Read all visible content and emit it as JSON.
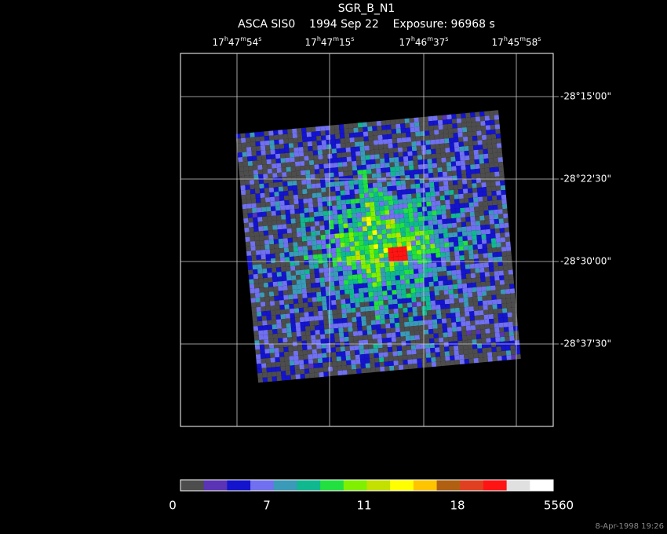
{
  "header": {
    "title": "SGR_B_N1",
    "subtitle": "ASCA SIS0    1994 Sep 22    Exposure: 96968 s"
  },
  "ra_labels": [
    [
      "17",
      "h",
      "47",
      "m",
      "54",
      "s"
    ],
    [
      "17",
      "h",
      "47",
      "m",
      "15",
      "s"
    ],
    [
      "17",
      "h",
      "46",
      "m",
      "37",
      "s"
    ],
    [
      "17",
      "h",
      "45",
      "m",
      "58",
      "s"
    ]
  ],
  "dec_labels": [
    "-28°15'00\"",
    "-28°22'30\"",
    "-28°30'00\"",
    "-28°37'30\""
  ],
  "colorbar": {
    "colors": [
      "#4d4d4d",
      "#5a34b4",
      "#1414cc",
      "#7070f0",
      "#3a9ab8",
      "#10b890",
      "#22e040",
      "#80f000",
      "#c4e000",
      "#ffff00",
      "#ffc400",
      "#b06010",
      "#e04020",
      "#ff1414",
      "#e0e0e0",
      "#ffffff"
    ],
    "labels": [
      "0",
      "7",
      "11",
      "18",
      "5560"
    ]
  },
  "footer": "8-Apr-1998 19:26"
}
